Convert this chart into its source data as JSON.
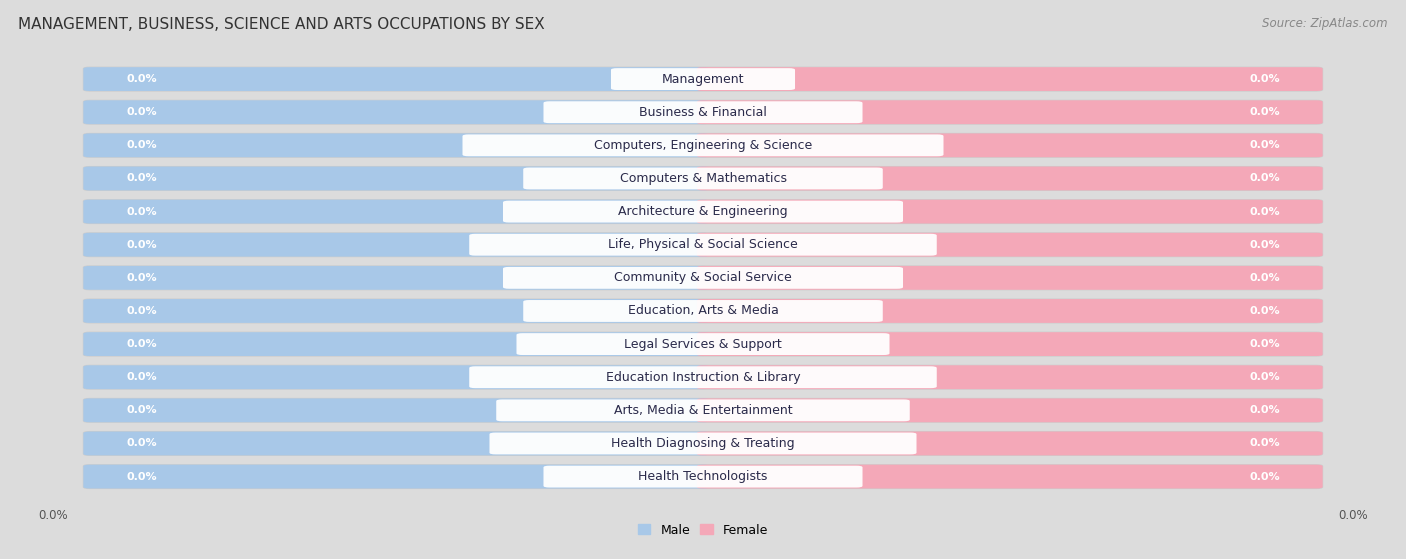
{
  "title": "MANAGEMENT, BUSINESS, SCIENCE AND ARTS OCCUPATIONS BY SEX",
  "source": "Source: ZipAtlas.com",
  "categories": [
    "Management",
    "Business & Financial",
    "Computers, Engineering & Science",
    "Computers & Mathematics",
    "Architecture & Engineering",
    "Life, Physical & Social Science",
    "Community & Social Service",
    "Education, Arts & Media",
    "Legal Services & Support",
    "Education Instruction & Library",
    "Arts, Media & Entertainment",
    "Health Diagnosing & Treating",
    "Health Technologists"
  ],
  "male_values": [
    0.0,
    0.0,
    0.0,
    0.0,
    0.0,
    0.0,
    0.0,
    0.0,
    0.0,
    0.0,
    0.0,
    0.0,
    0.0
  ],
  "female_values": [
    0.0,
    0.0,
    0.0,
    0.0,
    0.0,
    0.0,
    0.0,
    0.0,
    0.0,
    0.0,
    0.0,
    0.0,
    0.0
  ],
  "male_color": "#a8c8e8",
  "female_color": "#f4a8b8",
  "male_label": "Male",
  "female_label": "Female",
  "background_color": "#dcdcdc",
  "row_bg_color": "#f0f0f0",
  "bar_height": 0.62,
  "label_fontsize": 9,
  "title_fontsize": 11,
  "source_fontsize": 8.5,
  "value_fontsize": 8
}
